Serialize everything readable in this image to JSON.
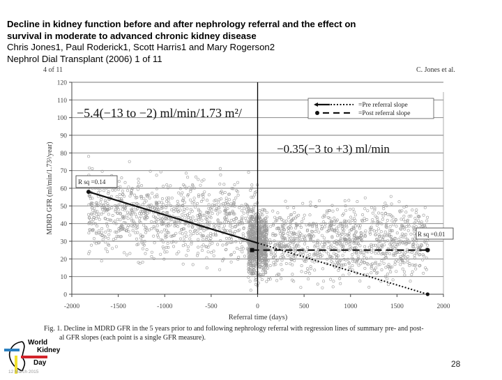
{
  "header": {
    "title_line1": "Decline in kidney function before and after nephrology referral and the effect on",
    "title_line2": "survival in moderate to advanced chronic kidney disease",
    "authors": "Chris Jones1, Paul Roderick1, Scott Harris1 and Mary Rogerson2",
    "citation": "Nephrol Dial Transplant (2006) 1 of 11"
  },
  "page_header": {
    "left": "4 of 11",
    "right": "C. Jones et al."
  },
  "caption": {
    "line1": "Fig. 1. Decline in MDRD GFR in the 5 years prior to and following nephrology referral with regression lines of summary pre- and post-",
    "line2": "al GFR slopes (each point is a single GFR measure)."
  },
  "logo": {
    "line1": "World",
    "line2": "Kidney",
    "line3": "Day",
    "date": "12 March 2015",
    "colors": {
      "blue": "#2a7fc0",
      "red": "#d2232a",
      "yellow": "#f2e12b"
    }
  },
  "slide_number": "28",
  "chart_data": {
    "type": "scatter",
    "title": "",
    "xlabel": "Referral time (days)",
    "ylabel": "MDRD GFR (ml/min/1.73²/year)",
    "xlim": [
      -2000,
      2000
    ],
    "ylim": [
      0,
      120
    ],
    "x_ticks": [
      -2000,
      -1500,
      -1000,
      -500,
      0,
      500,
      1000,
      1500,
      2000
    ],
    "y_ticks": [
      0,
      10,
      20,
      30,
      40,
      50,
      60,
      70,
      80,
      90,
      100,
      110,
      120
    ],
    "grid": true,
    "legend": {
      "position": "upper right",
      "entries": [
        "=Pre referral slope",
        "=Post referral slope"
      ]
    },
    "annotations": [
      {
        "text": "−5.4(−13   to   −2) ml/min/1.73 m²/",
        "x": -1850,
        "y": 104
      },
      {
        "text": "−0.35(−3   to   +3) ml/min",
        "x": 30,
        "y": 80
      },
      {
        "text": "R sq =0.14",
        "x": -1950,
        "y": 62
      },
      {
        "text": "R sq =0.01",
        "x": 1700,
        "y": 33
      }
    ],
    "series": [
      {
        "name": "Pre referral slope",
        "style": "solid",
        "points": [
          [
            -1820,
            58
          ],
          [
            0,
            29
          ]
        ]
      },
      {
        "name": "Pre referral slope (extrapolated)",
        "style": "dotted",
        "points": [
          [
            0,
            29
          ],
          [
            1830,
            0
          ]
        ]
      },
      {
        "name": "Post referral slope",
        "style": "dashed",
        "points": [
          [
            -60,
            25
          ],
          [
            1830,
            25
          ]
        ]
      }
    ],
    "scatter_description": "Dense cloud of several thousand individual GFR measurements (grey open circles), concentrated between 10 and 60 ml/min, densest near referral time 0"
  }
}
